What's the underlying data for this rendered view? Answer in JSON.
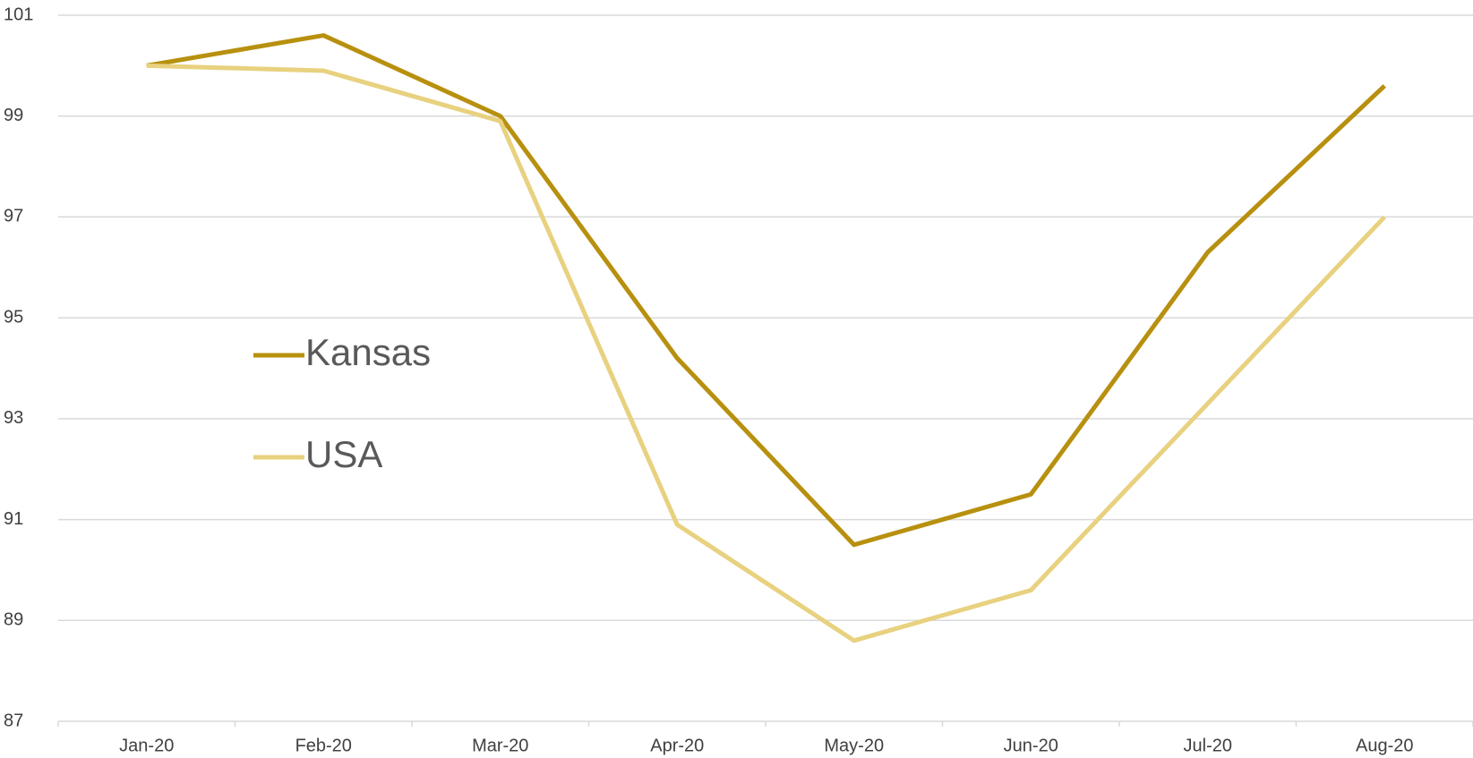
{
  "chart_data": {
    "type": "line",
    "categories": [
      "Jan-20",
      "Feb-20",
      "Mar-20",
      "Apr-20",
      "May-20",
      "Jun-20",
      "Jul-20",
      "Aug-20"
    ],
    "series": [
      {
        "name": "Kansas",
        "color": "#b8900f",
        "values": [
          100,
          100.6,
          99.0,
          94.2,
          90.5,
          91.5,
          96.3,
          99.6
        ]
      },
      {
        "name": "USA",
        "color": "#e8d17f",
        "values": [
          100,
          99.9,
          98.9,
          90.9,
          88.6,
          89.6,
          93.3,
          97.0
        ]
      }
    ],
    "ylim": [
      87,
      101
    ],
    "yticks": [
      87,
      89,
      91,
      93,
      95,
      97,
      99,
      101
    ],
    "grid": true
  }
}
